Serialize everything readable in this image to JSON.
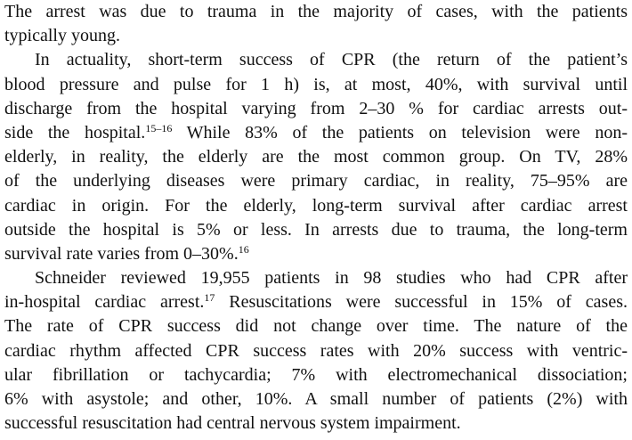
{
  "paragraphs": [
    {
      "indent": false,
      "lines": [
        "The arrest was due to trauma in the majority of cases, with the patients",
        "typically young."
      ]
    },
    {
      "indent": true,
      "lines": [
        "In actuality, short-term success of CPR (the return of the patient’s",
        "blood pressure and pulse for 1 h) is, at most, 40%, with survival until",
        "discharge from the hospital varying from 2–30 % for cardiac arrests out-",
        "side the hospital.|15–16| While 83% of the patients on television were non-",
        "elderly, in reality, the elderly are the most common group. On TV, 28%",
        "of the underlying diseases were primary cardiac, in reality, 75–95% are",
        "cardiac in origin. For the elderly, long-term survival after cardiac arrest",
        "outside the hospital is 5% or less. In arrests due to trauma, the long-term",
        "survival rate varies from 0–30%.|16|"
      ]
    },
    {
      "indent": true,
      "lines": [
        "Schneider reviewed 19,955 patients in 98 studies who had CPR after",
        "in-hospital cardiac arrest.|17| Resuscitations were successful in 15% of cases.",
        "The rate of CPR success did not change over time. The nature of the",
        "cardiac rhythm affected CPR success rates with 20% success with ventric-",
        "ular fibrillation or tachycardia; 7% with electromechanical dissociation;",
        "6% with asystole; and other, 10%. A small number of patients (2%) with",
        "successful resuscitation had central nervous system impairment."
      ]
    }
  ]
}
